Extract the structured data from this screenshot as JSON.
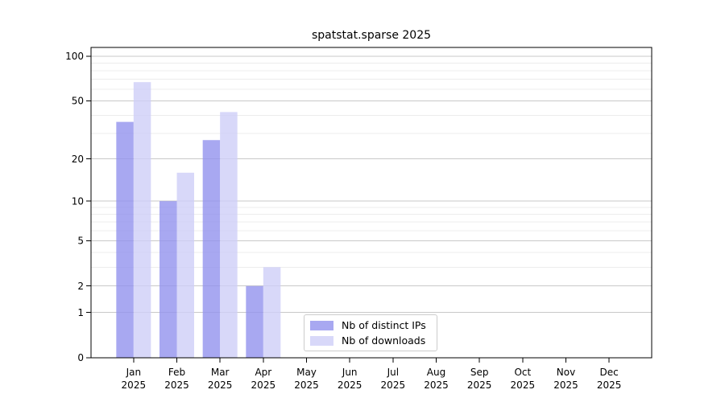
{
  "chart_data": {
    "type": "bar",
    "title": "spatstat.sparse 2025",
    "categories": [
      "Jan 2025",
      "Feb 2025",
      "Mar 2025",
      "Apr 2025",
      "May 2025",
      "Jun 2025",
      "Jul 2025",
      "Aug 2025",
      "Sep 2025",
      "Oct 2025",
      "Nov 2025",
      "Dec 2025"
    ],
    "series": [
      {
        "name": "Nb of distinct IPs",
        "color": "#9292ee",
        "values": [
          36,
          10,
          27,
          2,
          0,
          0,
          0,
          0,
          0,
          0,
          0,
          0
        ]
      },
      {
        "name": "Nb of downloads",
        "color": "#cecef7",
        "values": [
          67,
          16,
          42,
          3,
          0,
          0,
          0,
          0,
          0,
          0,
          0,
          0
        ]
      }
    ],
    "yscale": "log1p",
    "yticks": [
      0,
      1,
      2,
      5,
      10,
      20,
      50,
      100
    ],
    "minor_gridlines": [
      3,
      4,
      6,
      7,
      8,
      9,
      30,
      40,
      60,
      70,
      80,
      90
    ],
    "ylim": [
      0,
      115
    ],
    "xlabel": "",
    "ylabel": "",
    "grid": "horizontal",
    "legend_position": "inside bottom-center",
    "colors": {
      "bar_fill_opacity": 0.8,
      "major_gridline": "#c9c9c9",
      "minor_gridline": "#ececec",
      "axis": "#000000",
      "background": "#ffffff"
    }
  }
}
